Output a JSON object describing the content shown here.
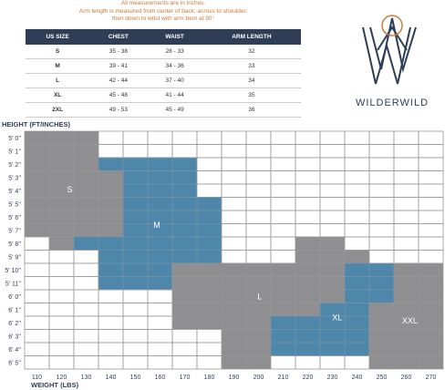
{
  "notes": [
    "All measurements are in inches.",
    "Arm length is measured from center of back, across to shoulder,",
    "then down to wrist with arm bent at 90°"
  ],
  "table": {
    "header": [
      "US SIZE",
      "CHEST",
      "WAIST",
      "ARM LENGTH"
    ],
    "rows": [
      [
        "S",
        "35 - 38",
        "28 - 33",
        "32"
      ],
      [
        "M",
        "39 - 41",
        "34 - 36",
        "33"
      ],
      [
        "L",
        "42 - 44",
        "37 - 40",
        "34"
      ],
      [
        "XL",
        "45 - 48",
        "41 - 44",
        "35"
      ],
      [
        "2XL",
        "49 - 53",
        "45 - 49",
        "36"
      ]
    ]
  },
  "logo": {
    "text": "WILDERWILD"
  },
  "grid": {
    "y_title": "HEIGHT (FT/INCHES)",
    "x_title": "WEIGHT (LBS)",
    "weights": [
      110,
      120,
      130,
      140,
      150,
      160,
      170,
      180,
      190,
      200,
      210,
      220,
      230,
      240,
      250,
      260,
      270
    ],
    "regions": [
      {
        "label": "S",
        "color": "#8f8f92"
      },
      {
        "label": "M",
        "color": "#4f87aa"
      },
      {
        "label": "L",
        "color": "#8f8f92"
      },
      {
        "label": "XL",
        "color": "#4f87aa"
      },
      {
        "label": "XXL",
        "color": "#8f8f92"
      }
    ],
    "rows": [
      {
        "label": "5' 0''",
        "cells": [
          "S",
          "S",
          "S",
          null,
          null,
          null,
          null,
          null,
          null,
          null,
          null,
          null,
          null,
          null,
          null,
          null,
          null
        ]
      },
      {
        "label": "5' 1''",
        "cells": [
          "S",
          "S",
          "S",
          null,
          null,
          null,
          null,
          null,
          null,
          null,
          null,
          null,
          null,
          null,
          null,
          null,
          null
        ]
      },
      {
        "label": "5' 2''",
        "cells": [
          "S",
          "S",
          "S",
          "M",
          "M",
          "M",
          "M",
          null,
          null,
          null,
          null,
          null,
          null,
          null,
          null,
          null,
          null
        ]
      },
      {
        "label": "5' 3''",
        "cells": [
          "S",
          "S",
          "S",
          "S",
          "M",
          "M",
          "M",
          null,
          null,
          null,
          null,
          null,
          null,
          null,
          null,
          null,
          null
        ]
      },
      {
        "label": "5' 4''",
        "cells": [
          "S",
          "S",
          "S",
          "S",
          "M",
          "M",
          "M",
          null,
          null,
          null,
          null,
          null,
          null,
          null,
          null,
          null,
          null
        ]
      },
      {
        "label": "5' 5''",
        "cells": [
          "S",
          "S",
          "S",
          "S",
          "M",
          "M",
          "M",
          "M",
          null,
          null,
          null,
          null,
          null,
          null,
          null,
          null,
          null
        ]
      },
      {
        "label": "5' 6''",
        "cells": [
          "S",
          "S",
          "S",
          "S",
          "M",
          "M",
          "M",
          "M",
          null,
          null,
          null,
          null,
          null,
          null,
          null,
          null,
          null
        ]
      },
      {
        "label": "5' 7''",
        "cells": [
          "S",
          "S",
          "S",
          "S",
          "M",
          "M",
          "M",
          "M",
          null,
          null,
          null,
          null,
          null,
          null,
          null,
          null,
          null
        ]
      },
      {
        "label": "5' 8''",
        "cells": [
          null,
          "S",
          "M",
          "M",
          "M",
          "M",
          "M",
          "M",
          null,
          null,
          null,
          "L",
          "L",
          null,
          null,
          null,
          null
        ]
      },
      {
        "label": "5' 9''",
        "cells": [
          null,
          null,
          null,
          "M",
          "M",
          "M",
          "M",
          "M",
          null,
          null,
          null,
          "L",
          "L",
          "L",
          null,
          null,
          null
        ]
      },
      {
        "label": "5' 10''",
        "cells": [
          null,
          null,
          null,
          "M",
          "M",
          "M",
          "L",
          "L",
          "L",
          "L",
          "L",
          "L",
          "L",
          "XL",
          "XL",
          "XXL",
          "XXL"
        ]
      },
      {
        "label": "5' 11''",
        "cells": [
          null,
          null,
          null,
          "M",
          "M",
          "M",
          "L",
          "L",
          "L",
          "L",
          "L",
          "L",
          "L",
          "XL",
          "XL",
          "XXL",
          "XXL"
        ]
      },
      {
        "label": "6' 0''",
        "cells": [
          null,
          null,
          null,
          null,
          null,
          null,
          "L",
          "L",
          "L",
          "L",
          "L",
          "L",
          "L",
          "XL",
          "XL",
          "XXL",
          "XXL"
        ]
      },
      {
        "label": "6' 1''",
        "cells": [
          null,
          null,
          null,
          null,
          null,
          null,
          "L",
          "L",
          "L",
          "L",
          "L",
          "L",
          "XL",
          "XL",
          "XXL",
          "XXL",
          "XXL"
        ]
      },
      {
        "label": "6' 2''",
        "cells": [
          null,
          null,
          null,
          null,
          null,
          null,
          "L",
          "L",
          "L",
          "L",
          "XL",
          "XL",
          "XL",
          "XL",
          "XXL",
          "XXL",
          "XXL"
        ]
      },
      {
        "label": "6' 3''",
        "cells": [
          null,
          null,
          null,
          null,
          null,
          null,
          null,
          null,
          "L",
          "L",
          "XL",
          "XL",
          "XL",
          "XL",
          "XXL",
          "XXL",
          "XXL"
        ]
      },
      {
        "label": "6' 4''",
        "cells": [
          null,
          null,
          null,
          null,
          null,
          null,
          null,
          null,
          "L",
          "L",
          "XL",
          "XL",
          "XL",
          "XL",
          "XXL",
          "XXL",
          "XXL"
        ]
      },
      {
        "label": "6' 5''",
        "cells": [
          null,
          null,
          null,
          null,
          null,
          null,
          null,
          null,
          "L",
          "L",
          null,
          null,
          null,
          null,
          "XXL",
          "XXL",
          "XXL"
        ]
      }
    ]
  }
}
